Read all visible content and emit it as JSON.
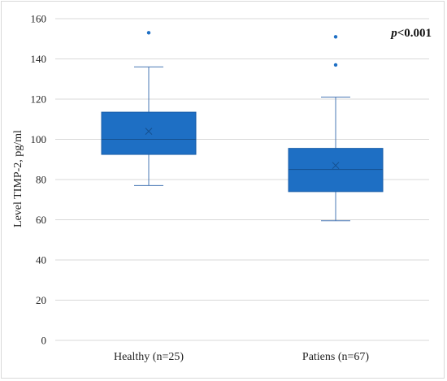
{
  "chart_data": {
    "type": "box",
    "ylabel": "Level TIMP-2, pg/ml",
    "ylim": [
      0,
      160
    ],
    "yticks": [
      0,
      20,
      40,
      60,
      80,
      100,
      120,
      140,
      160
    ],
    "grid": true,
    "annotation": {
      "italic": "p",
      "rest": "<0.001"
    },
    "groups": [
      {
        "label": "Healthy (n=25)",
        "min": 77,
        "q1": 92.5,
        "median": 100,
        "q3": 113.5,
        "max": 136,
        "mean": 104,
        "outliers": [
          153
        ]
      },
      {
        "label": "Patiens (n=67)",
        "min": 59.5,
        "q1": 74,
        "median": 85,
        "q3": 95.5,
        "max": 121,
        "mean": 87,
        "outliers": [
          137,
          151
        ]
      }
    ],
    "colors": {
      "box_fill": "#1e6fc4",
      "box_stroke": "#1a5ea8",
      "whisker": "#4a78b5",
      "outlier": "#1e6fc4",
      "grid": "#d9d9d9"
    }
  }
}
